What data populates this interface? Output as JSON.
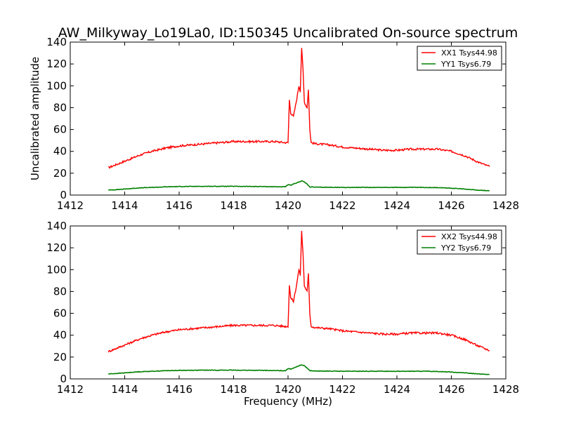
{
  "chart_data": [
    {
      "type": "line",
      "title": "AW_Milkyway_Lo19La0, ID:150345 Uncalibrated On-source spectrum",
      "xlabel": "",
      "ylabel": "Uncalibrated amplitude",
      "xlim": [
        1412,
        1428
      ],
      "ylim": [
        0,
        140
      ],
      "xticks": [
        1412,
        1414,
        1416,
        1418,
        1420,
        1422,
        1424,
        1426,
        1428
      ],
      "yticks": [
        0,
        20,
        40,
        60,
        80,
        100,
        120,
        140
      ],
      "legend_position": "top-right",
      "series": [
        {
          "name": "XX1 Tsys44.98",
          "color": "#ff0000",
          "x": [
            1413.4,
            1413.8,
            1414.2,
            1414.6,
            1415.0,
            1415.5,
            1416.0,
            1416.5,
            1417.0,
            1417.5,
            1418.0,
            1418.5,
            1419.0,
            1419.5,
            1419.9,
            1420.0,
            1420.05,
            1420.1,
            1420.2,
            1420.3,
            1420.4,
            1420.45,
            1420.5,
            1420.55,
            1420.6,
            1420.7,
            1420.75,
            1420.8,
            1420.85,
            1421.0,
            1421.5,
            1422.0,
            1422.5,
            1423.0,
            1423.5,
            1424.0,
            1424.5,
            1425.0,
            1425.5,
            1426.0,
            1426.5,
            1427.0,
            1427.4
          ],
          "values": [
            25,
            29,
            33,
            37,
            40,
            43,
            45,
            46,
            47,
            48,
            49,
            49,
            49,
            49,
            48,
            48,
            87,
            75,
            72,
            85,
            100,
            95,
            135,
            115,
            85,
            80,
            97,
            60,
            48,
            47,
            46,
            44,
            43,
            42,
            41,
            41,
            42,
            42,
            42,
            40,
            36,
            30,
            26
          ]
        },
        {
          "name": "YY1 Tsys6.79",
          "color": "#008000",
          "x": [
            1413.4,
            1414.0,
            1414.5,
            1415.0,
            1415.5,
            1416.0,
            1417.0,
            1418.0,
            1419.0,
            1419.9,
            1420.0,
            1420.1,
            1420.2,
            1420.4,
            1420.5,
            1420.6,
            1420.7,
            1420.8,
            1421.0,
            1422.0,
            1423.0,
            1424.0,
            1425.0,
            1425.5,
            1426.0,
            1426.5,
            1427.0,
            1427.4
          ],
          "values": [
            4.5,
            5.5,
            6.5,
            7,
            7.5,
            7.8,
            8,
            8,
            7.8,
            7.5,
            9.5,
            9,
            10,
            12,
            13,
            12,
            10,
            7.5,
            7.2,
            7,
            7,
            7,
            7,
            6.8,
            6.3,
            5.5,
            4.5,
            4
          ]
        }
      ]
    },
    {
      "type": "line",
      "title": "",
      "xlabel": "Frequency (MHz)",
      "ylabel": "",
      "xlim": [
        1412,
        1428
      ],
      "ylim": [
        0,
        140
      ],
      "xticks": [
        1412,
        1414,
        1416,
        1418,
        1420,
        1422,
        1424,
        1426,
        1428
      ],
      "yticks": [
        0,
        20,
        40,
        60,
        80,
        100,
        120,
        140
      ],
      "legend_position": "top-right",
      "series": [
        {
          "name": "XX2 Tsys44.98",
          "color": "#ff0000",
          "x": [
            1413.4,
            1413.8,
            1414.2,
            1414.6,
            1415.0,
            1415.5,
            1416.0,
            1416.5,
            1417.0,
            1417.5,
            1418.0,
            1418.5,
            1419.0,
            1419.5,
            1419.9,
            1420.0,
            1420.05,
            1420.1,
            1420.2,
            1420.3,
            1420.4,
            1420.45,
            1420.5,
            1420.55,
            1420.6,
            1420.7,
            1420.75,
            1420.8,
            1420.85,
            1421.0,
            1421.5,
            1422.0,
            1422.5,
            1423.0,
            1423.5,
            1424.0,
            1424.5,
            1425.0,
            1425.5,
            1426.0,
            1426.5,
            1427.0,
            1427.4
          ],
          "values": [
            25,
            29,
            33,
            37,
            40,
            43,
            45,
            46,
            47,
            48,
            49,
            49,
            49,
            49,
            48,
            48,
            86,
            74,
            71,
            84,
            100,
            95,
            135,
            115,
            85,
            80,
            96,
            60,
            48,
            47,
            46,
            44,
            43,
            42,
            41,
            41,
            42,
            42,
            42,
            40,
            36,
            30,
            26
          ]
        },
        {
          "name": "YY2 Tsys6.79",
          "color": "#008000",
          "x": [
            1413.4,
            1414.0,
            1414.5,
            1415.0,
            1415.5,
            1416.0,
            1417.0,
            1418.0,
            1419.0,
            1419.9,
            1420.0,
            1420.1,
            1420.2,
            1420.4,
            1420.5,
            1420.6,
            1420.7,
            1420.8,
            1421.0,
            1422.0,
            1423.0,
            1424.0,
            1425.0,
            1425.5,
            1426.0,
            1426.5,
            1427.0,
            1427.4
          ],
          "values": [
            4.5,
            5.5,
            6.5,
            7,
            7.5,
            7.8,
            8,
            8,
            7.8,
            7.5,
            9.5,
            9,
            10,
            12,
            13,
            12,
            10,
            7.5,
            7.2,
            7,
            7,
            7,
            7,
            6.8,
            6.3,
            5.5,
            4.5,
            4
          ]
        }
      ]
    }
  ]
}
